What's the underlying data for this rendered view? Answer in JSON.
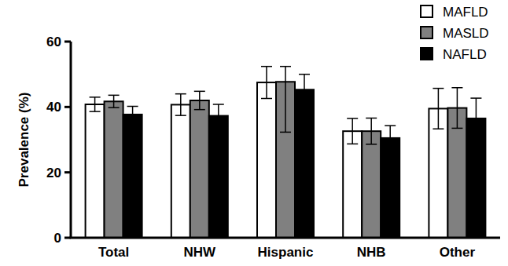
{
  "chart_data": {
    "type": "bar",
    "y_label": "Prevalence (%)",
    "categories": [
      "Total",
      "NHW",
      "Hispanic",
      "NHB",
      "Other"
    ],
    "series": [
      {
        "name": "MAFLD",
        "color": "#ffffff",
        "values": [
          40.8,
          40.7,
          47.5,
          32.6,
          39.5
        ],
        "ci_low": [
          38.6,
          37.4,
          42.6,
          28.7,
          33.3
        ],
        "ci_high": [
          43.0,
          44.0,
          52.4,
          36.5,
          45.7
        ]
      },
      {
        "name": "MASLD",
        "color": "#808080",
        "values": [
          41.7,
          42.0,
          47.7,
          32.6,
          39.7
        ],
        "ci_low": [
          39.8,
          39.2,
          32.3,
          28.6,
          33.5
        ],
        "ci_high": [
          43.6,
          44.8,
          52.4,
          36.6,
          45.9
        ]
      },
      {
        "name": "NAFLD",
        "color": "#000000",
        "values": [
          37.7,
          37.3,
          45.3,
          30.5,
          36.5
        ],
        "ci_low": [
          35.2,
          33.8,
          40.5,
          26.7,
          30.3
        ],
        "ci_high": [
          40.2,
          40.8,
          50.0,
          34.3,
          42.7
        ]
      }
    ],
    "ylim": [
      0,
      60
    ],
    "yticks": [
      0,
      20,
      40,
      60
    ],
    "grid": false,
    "legend": "upper right"
  }
}
